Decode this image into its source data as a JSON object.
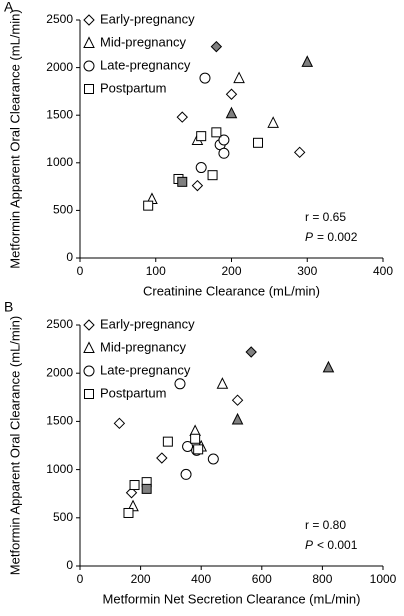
{
  "chart_data": [
    {
      "type": "scatter",
      "panel_label": "A",
      "x_label": "Creatinine Clearance (mL/min)",
      "y_label": "Metformin Apparent Oral Clearance (mL/min)",
      "xlim": [
        0,
        400
      ],
      "xticks": [
        0,
        100,
        200,
        300,
        400
      ],
      "ylim": [
        0,
        2500
      ],
      "yticks": [
        0,
        500,
        1000,
        1500,
        2000,
        2500
      ],
      "legend": "top-left",
      "r_text": "r = 0.65",
      "p_symbol": "P",
      "p_text": "= 0.002",
      "series": [
        {
          "name": "Early-pregnancy",
          "marker": "diamond",
          "color": "#000000",
          "x": [
            135,
            180,
            200,
            290,
            155
          ],
          "values": [
            1480,
            2220,
            1720,
            1110,
            760
          ],
          "point_colors": [
            "#ffffff",
            "#808080",
            "#ffffff",
            "#ffffff",
            "#ffffff"
          ]
        },
        {
          "name": "Mid-pregnancy",
          "marker": "triangle",
          "color": "#000000",
          "x": [
            95,
            155,
            200,
            210,
            255,
            300
          ],
          "values": [
            620,
            1240,
            1520,
            1890,
            1420,
            2060
          ],
          "point_colors": [
            "#ffffff",
            "#ffffff",
            "#808080",
            "#ffffff",
            "#ffffff",
            "#808080"
          ]
        },
        {
          "name": "Late-pregnancy",
          "marker": "circle",
          "color": "#000000",
          "x": [
            165,
            160,
            185,
            190,
            190
          ],
          "values": [
            1890,
            950,
            1190,
            1240,
            1100
          ],
          "point_colors": [
            "#ffffff",
            "#ffffff",
            "#ffffff",
            "#ffffff",
            "#ffffff"
          ]
        },
        {
          "name": "Postpartum",
          "marker": "square",
          "color": "#000000",
          "x": [
            90,
            130,
            135,
            160,
            175,
            180,
            235
          ],
          "values": [
            550,
            830,
            800,
            1280,
            870,
            1320,
            1210
          ],
          "point_colors": [
            "#ffffff",
            "#ffffff",
            "#808080",
            "#ffffff",
            "#ffffff",
            "#ffffff",
            "#ffffff"
          ]
        }
      ]
    },
    {
      "type": "scatter",
      "panel_label": "B",
      "x_label": "Metformin Net Secretion Clearance (mL/min)",
      "y_label": "Metformin Apparent Oral Clearance (mL/min)",
      "xlim": [
        0,
        1000
      ],
      "xticks": [
        0,
        200,
        400,
        600,
        800,
        1000
      ],
      "ylim": [
        0,
        2500
      ],
      "yticks": [
        0,
        500,
        1000,
        1500,
        2000,
        2500
      ],
      "legend": "top-left",
      "r_text": "r = 0.80",
      "p_symbol": "P",
      "p_text": "< 0.001",
      "series": [
        {
          "name": "Early-pregnancy",
          "marker": "diamond",
          "color": "#000000",
          "x": [
            130,
            270,
            170,
            520,
            565
          ],
          "values": [
            1480,
            1120,
            760,
            1720,
            2220
          ],
          "point_colors": [
            "#ffffff",
            "#ffffff",
            "#ffffff",
            "#ffffff",
            "#808080"
          ]
        },
        {
          "name": "Mid-pregnancy",
          "marker": "triangle",
          "color": "#000000",
          "x": [
            175,
            380,
            400,
            470,
            520,
            820
          ],
          "values": [
            620,
            1400,
            1240,
            1890,
            1520,
            2060
          ],
          "point_colors": [
            "#ffffff",
            "#ffffff",
            "#ffffff",
            "#ffffff",
            "#808080",
            "#808080"
          ]
        },
        {
          "name": "Late-pregnancy",
          "marker": "circle",
          "color": "#000000",
          "x": [
            330,
            350,
            355,
            385,
            440
          ],
          "values": [
            1890,
            950,
            1240,
            1200,
            1110
          ],
          "point_colors": [
            "#ffffff",
            "#ffffff",
            "#ffffff",
            "#ffffff",
            "#ffffff"
          ]
        },
        {
          "name": "Postpartum",
          "marker": "square",
          "color": "#000000",
          "x": [
            160,
            180,
            220,
            220,
            290,
            380,
            390
          ],
          "values": [
            550,
            840,
            870,
            800,
            1290,
            1320,
            1210
          ],
          "point_colors": [
            "#ffffff",
            "#ffffff",
            "#ffffff",
            "#808080",
            "#ffffff",
            "#ffffff",
            "#ffffff"
          ]
        }
      ]
    }
  ]
}
